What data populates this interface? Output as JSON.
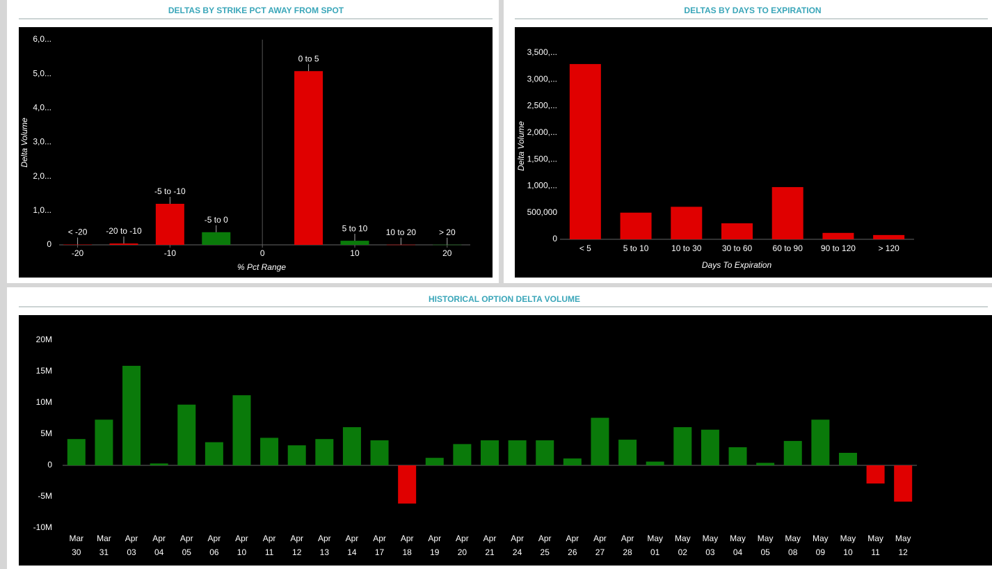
{
  "chart_data": [
    {
      "type": "bar",
      "title": "DELTAS BY STRIKE PCT AWAY FROM SPOT",
      "x_label": "% Pct Range",
      "y_label": "Delta Volume",
      "x": [
        -20,
        -15,
        -10,
        -5,
        5,
        10,
        15,
        20
      ],
      "categories": [
        "< -20",
        "-20 to -10",
        "-5 to -10",
        "-5 to 0",
        "0 to 5",
        "5 to 10",
        "10 to 20",
        "> 20"
      ],
      "values": [
        10,
        40,
        1200,
        370,
        5080,
        120,
        5,
        5
      ],
      "colors": [
        "#e00000",
        "#e00000",
        "#e00000",
        "#0a7a0a",
        "#e00000",
        "#0a7a0a",
        "#e00000",
        "#0a7a0a"
      ],
      "label_colors": [
        "#ff4040",
        "#ff4040",
        "#ff4040",
        "#3fbf3f",
        "#ff4040",
        "#3fbf3f",
        "#ff4040",
        "#3fbf3f"
      ],
      "xlim": [
        -22,
        22.5
      ],
      "xticks": [
        -20,
        -10,
        0,
        10,
        20
      ],
      "zero_line": true,
      "ylim": [
        0,
        6000
      ],
      "yticks": [
        0,
        {
          "value": 1000,
          "label": "1,0..."
        },
        {
          "value": 2000,
          "label": "2,0..."
        },
        {
          "value": 3000,
          "label": "3,0..."
        },
        {
          "value": 4000,
          "label": "4,0..."
        },
        {
          "value": 5000,
          "label": "5,0..."
        },
        {
          "value": 6000,
          "label": "6,0..."
        }
      ]
    },
    {
      "type": "bar",
      "title": "DELTAS BY DAYS TO EXPIRATION",
      "x_label": "Days To Expiration",
      "y_label": "Delta Volume",
      "categories": [
        "< 5",
        "5 to 10",
        "10 to 30",
        "30 to 60",
        "60 to 90",
        "90 to 120",
        "> 120"
      ],
      "values": [
        3290000,
        500000,
        610000,
        300000,
        980000,
        120000,
        80000
      ],
      "color": "#e00000",
      "ylim": [
        0,
        3500000
      ],
      "yticks": [
        0,
        {
          "value": 500000,
          "label": "500,000"
        },
        {
          "value": 1000000,
          "label": "1,000,..."
        },
        {
          "value": 1500000,
          "label": "1,500,..."
        },
        {
          "value": 2000000,
          "label": "2,000,..."
        },
        {
          "value": 2500000,
          "label": "2,500,..."
        },
        {
          "value": 3000000,
          "label": "3,000,..."
        },
        {
          "value": 3500000,
          "label": "3,500,..."
        }
      ]
    },
    {
      "type": "bar",
      "title": "HISTORICAL OPTION DELTA VOLUME",
      "categories": [
        [
          "Mar",
          "30"
        ],
        [
          "Mar",
          "31"
        ],
        [
          "Apr",
          "03"
        ],
        [
          "Apr",
          "04"
        ],
        [
          "Apr",
          "05"
        ],
        [
          "Apr",
          "06"
        ],
        [
          "Apr",
          "10"
        ],
        [
          "Apr",
          "11"
        ],
        [
          "Apr",
          "12"
        ],
        [
          "Apr",
          "13"
        ],
        [
          "Apr",
          "14"
        ],
        [
          "Apr",
          "17"
        ],
        [
          "Apr",
          "18"
        ],
        [
          "Apr",
          "19"
        ],
        [
          "Apr",
          "20"
        ],
        [
          "Apr",
          "21"
        ],
        [
          "Apr",
          "24"
        ],
        [
          "Apr",
          "25"
        ],
        [
          "Apr",
          "26"
        ],
        [
          "Apr",
          "27"
        ],
        [
          "Apr",
          "28"
        ],
        [
          "May",
          "01"
        ],
        [
          "May",
          "02"
        ],
        [
          "May",
          "03"
        ],
        [
          "May",
          "04"
        ],
        [
          "May",
          "05"
        ],
        [
          "May",
          "08"
        ],
        [
          "May",
          "09"
        ],
        [
          "May",
          "10"
        ],
        [
          "May",
          "11"
        ],
        [
          "May",
          "12"
        ]
      ],
      "values": [
        4200000,
        7300000,
        15900000,
        300000,
        9700000,
        3700000,
        11200000,
        4400000,
        3200000,
        4200000,
        6100000,
        4000000,
        -6100000,
        1200000,
        3400000,
        4000000,
        4000000,
        4000000,
        1100000,
        7600000,
        4100000,
        600000,
        6100000,
        5700000,
        2900000,
        400000,
        3900000,
        7300000,
        2000000,
        -2900000,
        -5800000
      ],
      "positive_color": "#0a7a0a",
      "negative_color": "#e00000",
      "ylim": [
        -10000000,
        20000000
      ],
      "yticks": [
        {
          "value": -10000000,
          "label": "-10M"
        },
        {
          "value": -5000000,
          "label": "-5M"
        },
        0,
        {
          "value": 5000000,
          "label": "5M"
        },
        {
          "value": 10000000,
          "label": "10M"
        },
        {
          "value": 15000000,
          "label": "15M"
        },
        {
          "value": 20000000,
          "label": "20M"
        }
      ]
    }
  ]
}
